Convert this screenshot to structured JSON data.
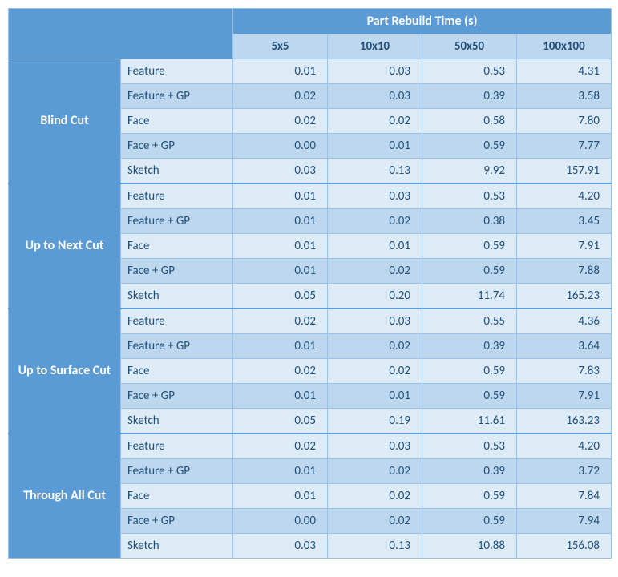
{
  "header": {
    "title": "Part Rebuild Time (s)",
    "columns": [
      "5x5",
      "10x10",
      "50x50",
      "100x100"
    ]
  },
  "colors": {
    "header_bg": "#5b9bd5",
    "header_fg": "#ffffff",
    "subheader_bg": "#bdd7ee",
    "row_even_bg": "#ddebf7",
    "row_odd_bg": "#bdd7ee",
    "text": "#1f4e78",
    "border": "#9bc2e6"
  },
  "methods": [
    "Feature",
    "Feature + GP",
    "Face",
    "Face + GP",
    "Sketch"
  ],
  "groups": [
    {
      "name": "Blind Cut",
      "rows": [
        [
          "0.01",
          "0.03",
          "0.53",
          "4.31"
        ],
        [
          "0.02",
          "0.03",
          "0.39",
          "3.58"
        ],
        [
          "0.02",
          "0.02",
          "0.58",
          "7.80"
        ],
        [
          "0.00",
          "0.01",
          "0.59",
          "7.77"
        ],
        [
          "0.03",
          "0.13",
          "9.92",
          "157.91"
        ]
      ]
    },
    {
      "name": "Up to Next Cut",
      "rows": [
        [
          "0.01",
          "0.03",
          "0.53",
          "4.20"
        ],
        [
          "0.01",
          "0.02",
          "0.38",
          "3.45"
        ],
        [
          "0.01",
          "0.01",
          "0.59",
          "7.91"
        ],
        [
          "0.01",
          "0.02",
          "0.59",
          "7.88"
        ],
        [
          "0.05",
          "0.20",
          "11.74",
          "165.23"
        ]
      ]
    },
    {
      "name": "Up to Surface Cut",
      "rows": [
        [
          "0.02",
          "0.03",
          "0.55",
          "4.36"
        ],
        [
          "0.01",
          "0.02",
          "0.39",
          "3.64"
        ],
        [
          "0.02",
          "0.02",
          "0.59",
          "7.83"
        ],
        [
          "0.01",
          "0.01",
          "0.59",
          "7.91"
        ],
        [
          "0.05",
          "0.19",
          "11.61",
          "163.23"
        ]
      ]
    },
    {
      "name": "Through All Cut",
      "rows": [
        [
          "0.02",
          "0.03",
          "0.53",
          "4.20"
        ],
        [
          "0.01",
          "0.02",
          "0.39",
          "3.72"
        ],
        [
          "0.01",
          "0.02",
          "0.59",
          "7.84"
        ],
        [
          "0.00",
          "0.02",
          "0.59",
          "7.94"
        ],
        [
          "0.03",
          "0.13",
          "10.88",
          "156.08"
        ]
      ]
    }
  ]
}
